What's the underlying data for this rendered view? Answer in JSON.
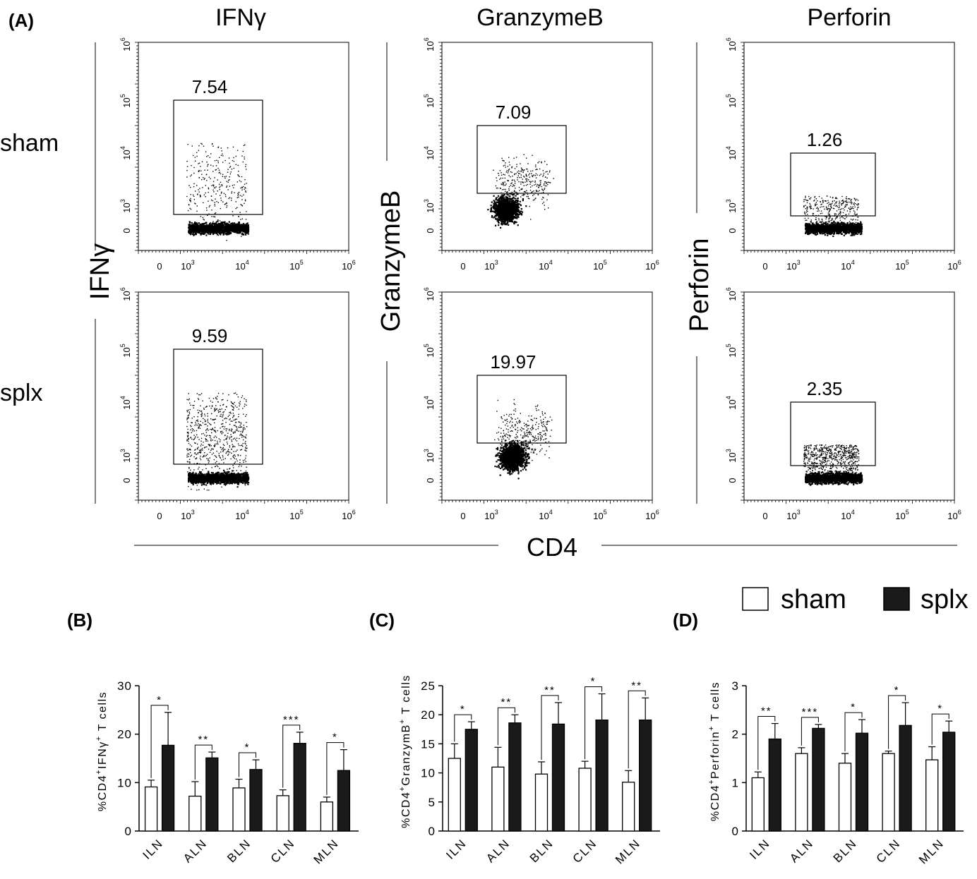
{
  "panel_a": {
    "label": "(A)",
    "column_titles": [
      "IFNγ",
      "GranzymeB",
      "Perforin"
    ],
    "row_labels": [
      "sham",
      "splx"
    ],
    "y_axis_labels": [
      "IFNγ",
      "GranzymeB",
      "Perforin"
    ],
    "x_axis_label": "CD4",
    "tick_zero": "0",
    "tick_base": "10",
    "tick_exponents": [
      "3",
      "4",
      "5",
      "6"
    ],
    "gate_values": [
      [
        "7.54",
        "7.09",
        "1.26"
      ],
      [
        "9.59",
        "19.97",
        "2.35"
      ]
    ]
  },
  "legend": {
    "items": [
      "sham",
      "splx"
    ],
    "colors": [
      "#ffffff",
      "#1a1a1a"
    ]
  },
  "chart_data": [
    {
      "type": "bar",
      "panel": "(B)",
      "ylabel": "%CD4+IFNγ+ T cells",
      "ylabel_parts": [
        "%CD4",
        "+",
        "IFNγ",
        "+",
        " T cells"
      ],
      "categories": [
        "ILN",
        "ALN",
        "BLN",
        "CLN",
        "MLN"
      ],
      "ylim": [
        0,
        30
      ],
      "yticks": [
        0,
        10,
        20,
        30
      ],
      "series": [
        {
          "name": "sham",
          "values": [
            9.1,
            7.2,
            8.9,
            7.3,
            6.0
          ],
          "errors": [
            1.4,
            3.0,
            1.8,
            1.2,
            1.0
          ]
        },
        {
          "name": "splx",
          "values": [
            17.7,
            15.1,
            12.7,
            18.1,
            12.5
          ],
          "errors": [
            6.8,
            1.2,
            2.0,
            2.3,
            4.3
          ]
        }
      ],
      "significance": [
        "*",
        "**",
        "*",
        "***",
        "*"
      ]
    },
    {
      "type": "bar",
      "panel": "(C)",
      "ylabel": "%CD4+GranzymB+ T cells",
      "ylabel_parts": [
        "%CD4",
        "+",
        "GranzymB",
        "+",
        " T cells"
      ],
      "categories": [
        "ILN",
        "ALN",
        "BLN",
        "CLN",
        "MLN"
      ],
      "ylim": [
        0,
        25
      ],
      "yticks": [
        0,
        5,
        10,
        15,
        20,
        25
      ],
      "series": [
        {
          "name": "sham",
          "values": [
            12.5,
            11.0,
            9.8,
            10.8,
            8.4
          ],
          "errors": [
            2.5,
            3.4,
            2.1,
            1.2,
            2.0
          ]
        },
        {
          "name": "splx",
          "values": [
            17.5,
            18.6,
            18.4,
            19.1,
            19.1
          ],
          "errors": [
            1.3,
            1.4,
            3.7,
            4.5,
            3.8
          ]
        }
      ],
      "significance": [
        "*",
        "**",
        "**",
        "*",
        "**"
      ]
    },
    {
      "type": "bar",
      "panel": "(D)",
      "ylabel": "%CD4+Perforin+ T cells",
      "ylabel_parts": [
        "%CD4",
        "+",
        "Perforin",
        "+",
        " T cells"
      ],
      "categories": [
        "ILN",
        "ALN",
        "BLN",
        "CLN",
        "MLN"
      ],
      "ylim": [
        0,
        3
      ],
      "yticks": [
        0,
        1,
        2,
        3
      ],
      "series": [
        {
          "name": "sham",
          "values": [
            1.1,
            1.6,
            1.4,
            1.6,
            1.47
          ],
          "errors": [
            0.12,
            0.12,
            0.2,
            0.05,
            0.27
          ]
        },
        {
          "name": "splx",
          "values": [
            1.9,
            2.12,
            2.02,
            2.18,
            2.04
          ],
          "errors": [
            0.32,
            0.08,
            0.28,
            0.47,
            0.23
          ]
        }
      ],
      "significance": [
        "**",
        "***",
        "*",
        "*",
        "*"
      ]
    }
  ]
}
